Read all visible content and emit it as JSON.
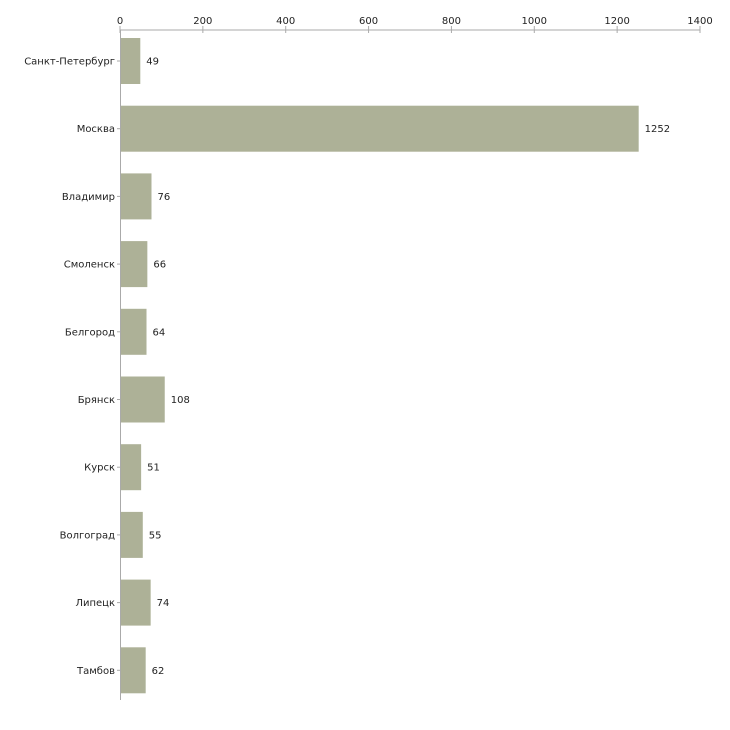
{
  "chart_data": {
    "type": "bar",
    "orientation": "horizontal",
    "title": "",
    "xlabel": "",
    "ylabel": "",
    "xlim": [
      0,
      1400
    ],
    "ticks": [
      0,
      200,
      400,
      600,
      800,
      1000,
      1200,
      1400
    ],
    "tick_labels": [
      "0",
      "200",
      "400",
      "600",
      "800",
      "1000",
      "1200",
      "1400"
    ],
    "axis_position": "top",
    "categories": [
      "Санкт-Петербург",
      "Москва",
      "Владимир",
      "Смоленск",
      "Белгород",
      "Брянск",
      "Курск",
      "Волгоград",
      "Липецк",
      "Тамбов"
    ],
    "values": [
      49,
      1252,
      76,
      66,
      64,
      108,
      51,
      55,
      74,
      62
    ],
    "value_labels": [
      "49",
      "1252",
      "76",
      "66",
      "64",
      "108",
      "51",
      "55",
      "74",
      "62"
    ],
    "bar_color": "#adb197",
    "axis_color": "#aaaaaa",
    "grid": false
  }
}
